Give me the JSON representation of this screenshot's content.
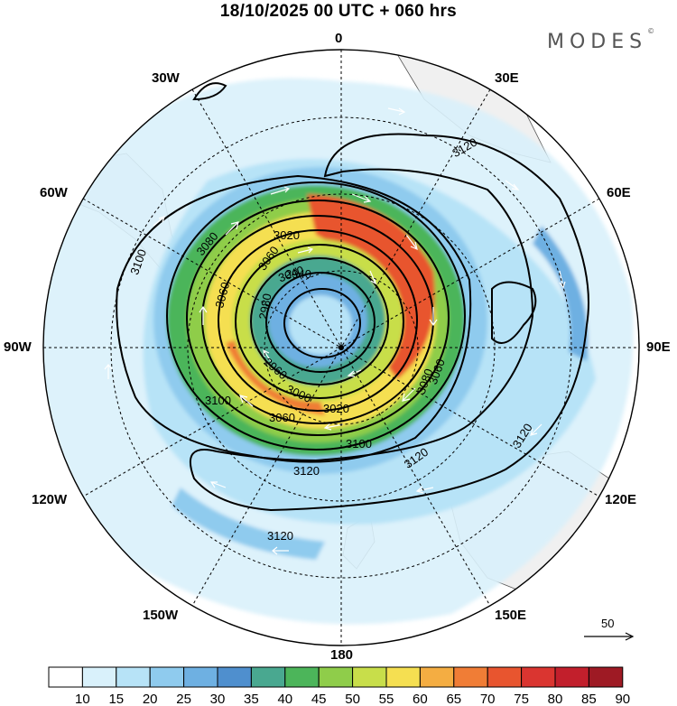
{
  "title": "18/10/2025  00 UTC  + 060 hrs",
  "brand": "MODES",
  "brand_mark": "©",
  "longitude_labels": {
    "lon_0": "0",
    "lon_30e": "30E",
    "lon_60e": "60E",
    "lon_90e": "90E",
    "lon_120e": "120E",
    "lon_150e": "150E",
    "lon_180": "180",
    "lon_150w": "150W",
    "lon_120w": "120W",
    "lon_90w": "90W",
    "lon_60w": "60W",
    "lon_30w": "30W"
  },
  "contour_labels": [
    "3120",
    "3120",
    "3120",
    "3120",
    "3120",
    "3100",
    "3100",
    "3100",
    "3080",
    "3080",
    "3060",
    "3060",
    "3060",
    "3060",
    "3040",
    "3020",
    "3020",
    "3000",
    "2980",
    "2960",
    "2940"
  ],
  "reference_vector": {
    "value": "50",
    "icon": "arrow-right-icon"
  },
  "wind_speed_colorbar": {
    "ticks": [
      "10",
      "15",
      "20",
      "25",
      "30",
      "35",
      "40",
      "45",
      "50",
      "55",
      "60",
      "65",
      "70",
      "75",
      "80",
      "85",
      "90"
    ],
    "colors": [
      "#ffffff",
      "#d9f1fb",
      "#b7e3f7",
      "#8fcbee",
      "#6eb0e2",
      "#4f8fce",
      "#49a890",
      "#4cb55a",
      "#8fcd4a",
      "#c8de4a",
      "#f5df51",
      "#f4ad42",
      "#f07d36",
      "#e8552f",
      "#da3530",
      "#c21f2c",
      "#9e1a24"
    ]
  }
}
